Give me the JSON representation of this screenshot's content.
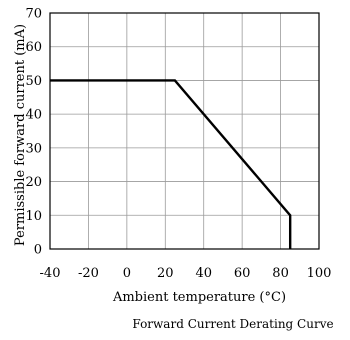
{
  "chart_data": {
    "type": "line",
    "title": "Forward Current Derating  Curve",
    "xlabel": "Ambient temperature (°C)",
    "ylabel": "Permissible forward current (mA)",
    "xlim": [
      -40,
      100
    ],
    "ylim": [
      0,
      70
    ],
    "x_ticks": [
      -40,
      -20,
      0,
      20,
      40,
      60,
      80,
      100
    ],
    "y_ticks": [
      0,
      10,
      20,
      30,
      40,
      50,
      60,
      70
    ],
    "x_tick_labels": [
      "-40",
      "-20",
      "0",
      "20",
      "40",
      "60",
      "80",
      "100"
    ],
    "y_tick_labels": [
      "0",
      "10",
      "20",
      "30",
      "40",
      "50",
      "60",
      "70"
    ],
    "grid": true,
    "series": [
      {
        "x": [
          -40,
          25,
          85,
          85
        ],
        "y": [
          50,
          50,
          10,
          0
        ],
        "color": "#000000"
      }
    ]
  }
}
